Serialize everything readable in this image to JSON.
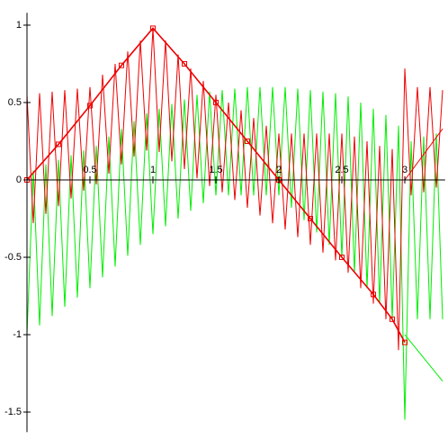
{
  "chart_data": {
    "type": "line",
    "xlim": [
      0,
      3.32
    ],
    "ylim": [
      -1.63,
      1.08
    ],
    "xticks": [
      0.5,
      1,
      1.5,
      2,
      2.5,
      3
    ],
    "yticks": [
      -1.5,
      -1,
      -0.5,
      0,
      0.5,
      1
    ],
    "series": [
      {
        "color": "#00ee00",
        "x": [
          0,
          0.05,
          0.1,
          0.15,
          0.2,
          0.25,
          0.3,
          0.35,
          0.4,
          0.45,
          0.5,
          0.55,
          0.6,
          0.65,
          0.7,
          0.75,
          0.8,
          0.85,
          0.9,
          0.95,
          1,
          1.05,
          1.1,
          1.15,
          1.2,
          1.25,
          1.3,
          1.35,
          1.4,
          1.45,
          1.5,
          1.55,
          1.6,
          1.65,
          1.7,
          1.75,
          1.8,
          1.85,
          1.9,
          1.95,
          2,
          2.05,
          2.1,
          2.15,
          2.2,
          2.25,
          2.3,
          2.35,
          2.4,
          2.45,
          2.5,
          2.55,
          2.6,
          2.65,
          2.7,
          2.75,
          2.8,
          2.85,
          2.9,
          2.95,
          3,
          3.05,
          3.1,
          3.15,
          3.2,
          3.25,
          3.3
        ],
        "values": [
          -1,
          0.06,
          -0.94,
          0.1,
          -0.88,
          0.13,
          -0.82,
          0.16,
          -0.76,
          0.19,
          -0.7,
          0.22,
          -0.63,
          0.28,
          -0.56,
          0.33,
          -0.49,
          0.38,
          -0.42,
          0.43,
          -0.35,
          0.46,
          -0.3,
          0.49,
          -0.25,
          0.52,
          -0.2,
          0.55,
          -0.15,
          0.57,
          -0.1,
          0.58,
          -0.1,
          0.59,
          -0.1,
          0.6,
          -0.1,
          0.6,
          -0.1,
          0.6,
          -0.1,
          0.6,
          -0.18,
          0.59,
          -0.26,
          0.58,
          -0.34,
          0.57,
          -0.42,
          0.56,
          -0.5,
          0.54,
          -0.6,
          0.5,
          -0.7,
          0.46,
          -0.8,
          0.42,
          -0.9,
          0.35,
          -1.55,
          0.25,
          -0.9,
          0.28,
          -0.9,
          0.3,
          -0.9
        ]
      },
      {
        "color": "#ee0000",
        "x": [
          0,
          0.05,
          0.1,
          0.15,
          0.2,
          0.25,
          0.3,
          0.35,
          0.4,
          0.45,
          0.5,
          0.55,
          0.6,
          0.65,
          0.7,
          0.75,
          0.8,
          0.85,
          0.9,
          0.95,
          1,
          1.05,
          1.1,
          1.15,
          1.2,
          1.25,
          1.3,
          1.35,
          1.4,
          1.45,
          1.5,
          1.55,
          1.6,
          1.65,
          1.7,
          1.75,
          1.8,
          1.85,
          1.9,
          1.95,
          2,
          2.05,
          2.1,
          2.15,
          2.2,
          2.25,
          2.3,
          2.35,
          2.4,
          2.45,
          2.5,
          2.55,
          2.6,
          2.65,
          2.7,
          2.75,
          2.8,
          2.85,
          2.9,
          2.95,
          3,
          3.05,
          3.1,
          3.15,
          3.2,
          3.25,
          3.3
        ],
        "values": [
          0.55,
          -0.28,
          0.56,
          -0.22,
          0.57,
          -0.17,
          0.58,
          -0.12,
          0.59,
          -0.07,
          0.6,
          -0.03,
          0.68,
          0.04,
          0.75,
          0.1,
          0.83,
          0.15,
          0.9,
          0.19,
          0.98,
          0.18,
          0.9,
          0.12,
          0.81,
          0.07,
          0.72,
          0.01,
          0.64,
          -0.04,
          0.55,
          -0.08,
          0.5,
          -0.13,
          0.45,
          -0.18,
          0.4,
          -0.23,
          0.35,
          -0.28,
          0.3,
          -0.32,
          0.3,
          -0.37,
          0.3,
          -0.42,
          0.3,
          -0.47,
          0.3,
          -0.52,
          0.3,
          -0.6,
          0.28,
          -0.7,
          0.25,
          -0.8,
          0.22,
          -0.9,
          0.2,
          -1.1,
          0.72,
          -0.1,
          0.6,
          -0.08,
          0.6,
          -0.05,
          0.58
        ]
      },
      {
        "color": "#ee0000",
        "marker": "square",
        "x": [
          0,
          0.25,
          0.5,
          0.75,
          1,
          1.25,
          1.5,
          1.75,
          2,
          2.25,
          2.5,
          2.75,
          2.9,
          3
        ],
        "values": [
          0,
          0.23,
          0.48,
          0.74,
          0.98,
          0.75,
          0.5,
          0.25,
          0,
          -0.25,
          -0.5,
          -0.74,
          -0.9,
          -1.05
        ]
      },
      {
        "color": "#00ee00",
        "x": [
          3,
          3.3
        ],
        "values": [
          -1,
          -1.3
        ]
      },
      {
        "color": "#ee0000",
        "x": [
          3,
          3.3
        ],
        "values": [
          0,
          0.33
        ]
      }
    ]
  }
}
